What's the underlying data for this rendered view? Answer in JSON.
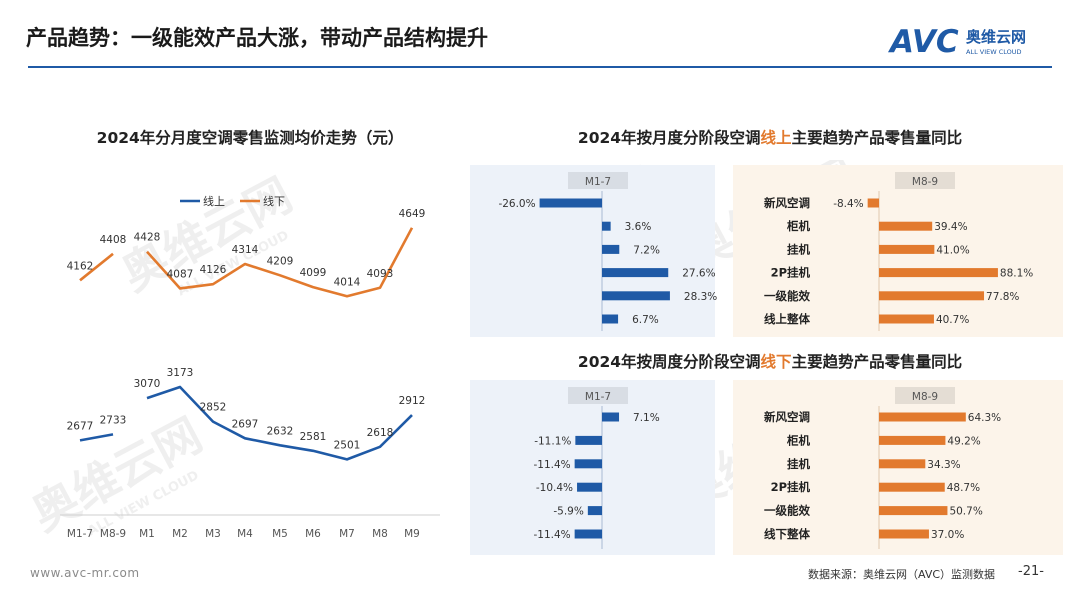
{
  "header": {
    "title": "产品趋势：一级能效产品大涨，带动产品结构提升",
    "logo_text": "AVC",
    "logo_cn": "奥维云网",
    "logo_en": "ALL VIEW CLOUD"
  },
  "watermark": {
    "cn": "奥维云网",
    "en": "ALL VIEW CLOUD"
  },
  "chart_data": [
    {
      "type": "line",
      "title": "2024年分月度空调零售监测均价走势（元）",
      "categories": [
        "M1-7",
        "M8-9",
        "M1",
        "M2",
        "M3",
        "M4",
        "M5",
        "M6",
        "M7",
        "M8",
        "M9"
      ],
      "series": [
        {
          "name": "线上",
          "color": "#1f5aa6",
          "values": [
            2677,
            2733,
            3070,
            3173,
            2852,
            2697,
            2632,
            2581,
            2501,
            2618,
            2912
          ],
          "segments": [
            [
              0,
              1
            ],
            [
              2,
              10
            ]
          ]
        },
        {
          "name": "线下",
          "color": "#e27a2e",
          "values": [
            4162,
            4408,
            4428,
            4087,
            4126,
            4314,
            4209,
            4099,
            4014,
            4093,
            4649
          ],
          "segments": [
            [
              0,
              1
            ],
            [
              2,
              10
            ]
          ]
        }
      ],
      "legend": "top-center",
      "grid": false,
      "ylim": [
        1800,
        5000
      ]
    },
    {
      "type": "bar",
      "title": "2024年按月度分阶段空调线上主要趋势产品零售量同比",
      "title_parts": [
        "2024年按月度分阶段空调",
        "线上",
        "主要趋势产品零售量同比"
      ],
      "categories": [
        "新风空调",
        "柜机",
        "挂机",
        "2P挂机",
        "一级能效",
        "线上整体"
      ],
      "panels": [
        {
          "label": "M1-7",
          "color": "#1f5aa6",
          "values": [
            -26.0,
            3.6,
            7.2,
            27.6,
            28.3,
            6.7
          ],
          "value_labels": [
            "-26.0%",
            "3.6%",
            "7.2%",
            "27.6%",
            "28.3%",
            "6.7%"
          ]
        },
        {
          "label": "M8-9",
          "color": "#e27a2e",
          "values": [
            -8.4,
            39.4,
            41.0,
            88.1,
            77.8,
            40.7
          ],
          "value_labels": [
            "-8.4%",
            "39.4%",
            "41.0%",
            "88.1%",
            "77.8%",
            "40.7%"
          ]
        }
      ]
    },
    {
      "type": "bar",
      "title": "2024年按周度分阶段空调线下主要趋势产品零售量同比",
      "title_parts": [
        "2024年按周度分阶段空调",
        "线下",
        "主要趋势产品零售量同比"
      ],
      "categories": [
        "新风空调",
        "柜机",
        "挂机",
        "2P挂机",
        "一级能效",
        "线下整体"
      ],
      "panels": [
        {
          "label": "M1-7",
          "color": "#1f5aa6",
          "values": [
            7.1,
            -11.1,
            -11.4,
            -10.4,
            -5.9,
            -11.4
          ],
          "value_labels": [
            "7.1%",
            "-11.1%",
            "-11.4%",
            "-10.4%",
            "-5.9%",
            "-11.4%"
          ]
        },
        {
          "label": "M8-9",
          "color": "#e27a2e",
          "values": [
            64.3,
            49.2,
            34.3,
            48.7,
            50.7,
            37.0
          ],
          "value_labels": [
            "64.3%",
            "49.2%",
            "34.3%",
            "48.7%",
            "50.7%",
            "37.0%"
          ]
        }
      ]
    }
  ],
  "footer": {
    "url": "www.avc-mr.com",
    "source": "数据来源：奥维云网（AVC）监测数据",
    "page": "-21-"
  }
}
